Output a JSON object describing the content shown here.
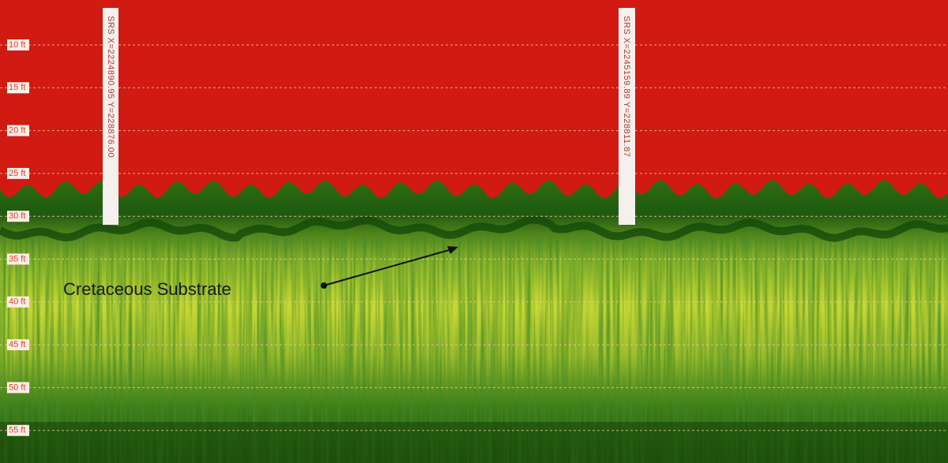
{
  "depth_labels": [
    "10 ft",
    "15 ft",
    "20 ft",
    "25 ft",
    "30 ft",
    "35 ft",
    "40 ft",
    "45 ft",
    "50 ft",
    "55 ft"
  ],
  "position_markers": [
    "SRS X=2224890.95 Y=228876.00",
    "SRS X=2245159.89 Y=228811.87"
  ],
  "annotation": "Cretaceous Substrate"
}
